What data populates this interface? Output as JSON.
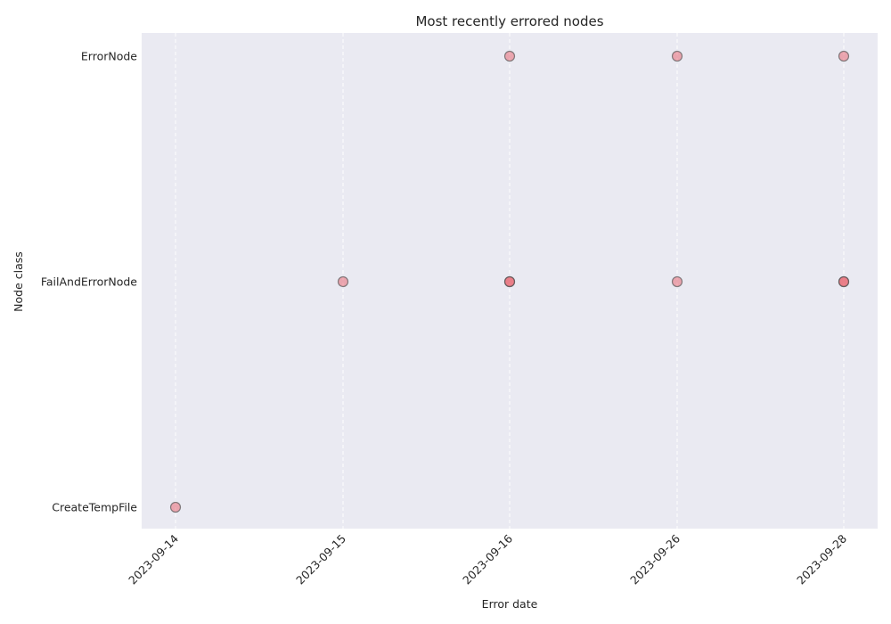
{
  "chart_data": {
    "type": "scatter",
    "title": "Most recently errored nodes",
    "xlabel": "Error date",
    "ylabel": "Node class",
    "x_categories": [
      "2023-09-14",
      "2023-09-15",
      "2023-09-16",
      "2023-09-26",
      "2023-09-28"
    ],
    "y_categories": [
      "CreateTempFile",
      "FailAndErrorNode",
      "ErrorNode"
    ],
    "points": [
      {
        "x": "2023-09-14",
        "y": "CreateTempFile",
        "count": 1
      },
      {
        "x": "2023-09-15",
        "y": "FailAndErrorNode",
        "count": 1
      },
      {
        "x": "2023-09-16",
        "y": "FailAndErrorNode",
        "count": 2
      },
      {
        "x": "2023-09-16",
        "y": "ErrorNode",
        "count": 1
      },
      {
        "x": "2023-09-26",
        "y": "FailAndErrorNode",
        "count": 1
      },
      {
        "x": "2023-09-26",
        "y": "ErrorNode",
        "count": 1
      },
      {
        "x": "2023-09-28",
        "y": "FailAndErrorNode",
        "count": 2
      },
      {
        "x": "2023-09-28",
        "y": "ErrorNode",
        "count": 1
      }
    ],
    "grid": "x-dashed",
    "colors": {
      "background": "#eaeaf2",
      "marker_fill": "#e8505b",
      "marker_edge": "#555555",
      "grid": "#ffffff"
    }
  }
}
